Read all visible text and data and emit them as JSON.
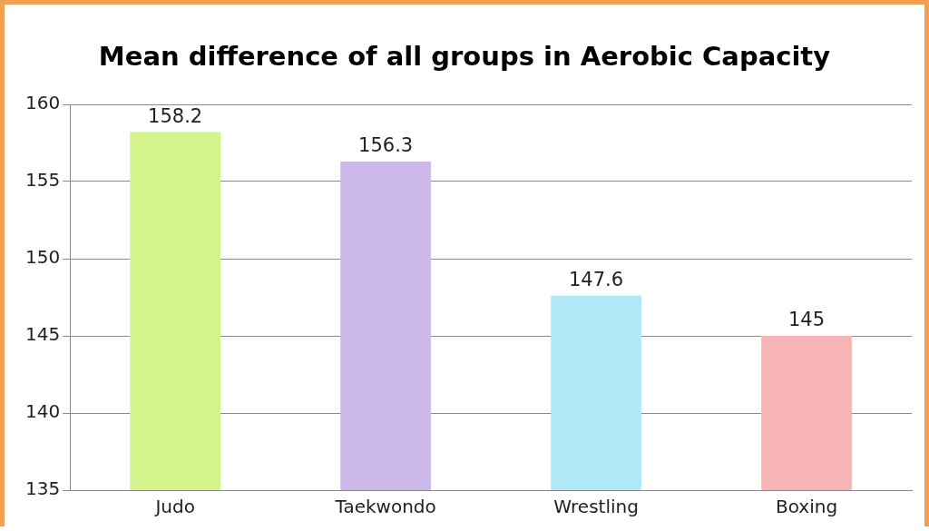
{
  "chart_data": {
    "type": "bar",
    "title": "Mean difference of all groups in Aerobic Capacity",
    "categories": [
      "Judo",
      "Taekwondo",
      "Wrestling",
      "Boxing"
    ],
    "values": [
      158.2,
      156.3,
      147.6,
      145
    ],
    "colors": [
      "#d4f48c",
      "#cdb8ea",
      "#b0e8f8",
      "#f6b4b4"
    ],
    "ylim": [
      135,
      160
    ],
    "yticks": [
      135,
      140,
      145,
      150,
      155,
      160
    ],
    "grid": "y",
    "data_labels": true,
    "legend": false
  }
}
